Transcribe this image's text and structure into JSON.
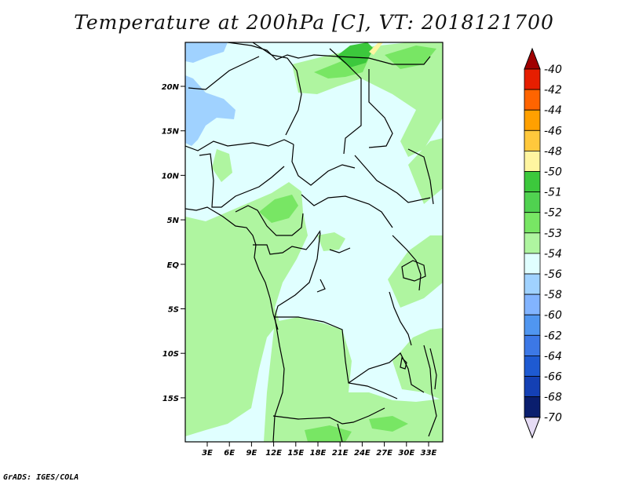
{
  "title": "Temperature at 200hPa [C], VT: 2018121700",
  "credit": "GrADS: IGES/COLA",
  "map": {
    "lat_labels": [
      "20N",
      "15N",
      "10N",
      "5N",
      "EQ",
      "5S",
      "10S",
      "15S"
    ],
    "lon_labels": [
      "3E",
      "6E",
      "9E",
      "12E",
      "15E",
      "18E",
      "21E",
      "24E",
      "27E",
      "30E",
      "33E"
    ],
    "colors": {
      "background": "#e0ffff",
      "pale_green": "#aff5a0",
      "mid_green": "#78e664",
      "dark_green": "#3cc83c",
      "light_blue": "#a0d2ff",
      "yellow": "#fff5a0"
    }
  },
  "colorbar": {
    "levels": [
      {
        "label": "-40",
        "color": "#a00000"
      },
      {
        "label": "-42",
        "color": "#e61e00"
      },
      {
        "label": "-44",
        "color": "#ff6400"
      },
      {
        "label": "-46",
        "color": "#ffa000"
      },
      {
        "label": "-48",
        "color": "#ffc83c"
      },
      {
        "label": "-50",
        "color": "#fff5a0"
      },
      {
        "label": "-51",
        "color": "#3cc83c"
      },
      {
        "label": "-52",
        "color": "#50d250"
      },
      {
        "label": "-53",
        "color": "#78e664"
      },
      {
        "label": "-54",
        "color": "#aff5a0"
      },
      {
        "label": "-56",
        "color": "#e0ffff"
      },
      {
        "label": "-58",
        "color": "#a0d2ff"
      },
      {
        "label": "-60",
        "color": "#82b4ff"
      },
      {
        "label": "-62",
        "color": "#5096f0"
      },
      {
        "label": "-64",
        "color": "#3c78e6"
      },
      {
        "label": "-66",
        "color": "#1e5ad2"
      },
      {
        "label": "-68",
        "color": "#1440b4"
      },
      {
        "label": "-70",
        "color": "#0a1e6e"
      }
    ],
    "bottom_triangle_color": "#e6dcf5"
  }
}
